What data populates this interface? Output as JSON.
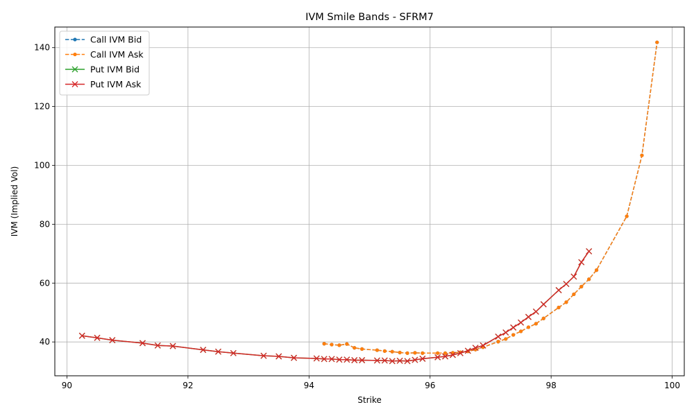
{
  "chart_data": {
    "type": "line",
    "title": "IVM Smile Bands - SFRM7",
    "xlabel": "Strike",
    "ylabel": "IVM (Implied Vol)",
    "xlim": [
      89.8,
      100.2
    ],
    "ylim": [
      28.5,
      147
    ],
    "xticks": [
      90,
      92,
      94,
      96,
      98,
      100
    ],
    "yticks": [
      40,
      60,
      80,
      100,
      120,
      140
    ],
    "grid": true,
    "legend_position": "top-left",
    "series": [
      {
        "name": "Call IVM Bid",
        "color": "#1f77b4",
        "linestyle": "dashed",
        "marker": "dot",
        "x": [
          94.25,
          94.375,
          94.5,
          94.625,
          94.75,
          94.875,
          95.125,
          95.25,
          95.375,
          95.5,
          95.625,
          95.75,
          95.875,
          96.125,
          96.25,
          96.375,
          96.5,
          96.625,
          96.75,
          96.875,
          97.125,
          97.25,
          97.375,
          97.5,
          97.625,
          97.75,
          97.875,
          98.125,
          98.25,
          98.375,
          98.5,
          98.625,
          98.75,
          99.25,
          99.5,
          99.75
        ],
        "y": [
          39.4,
          39.1,
          38.9,
          39.3,
          38.0,
          37.6,
          37.2,
          36.9,
          36.7,
          36.4,
          36.2,
          36.3,
          36.2,
          36.2,
          36.2,
          36.3,
          36.5,
          36.8,
          37.4,
          38.2,
          40.1,
          41.0,
          42.4,
          43.6,
          45.0,
          46.2,
          48.0,
          51.7,
          53.5,
          56.2,
          58.8,
          61.3,
          64.4,
          82.7,
          103.4,
          141.8
        ]
      },
      {
        "name": "Call IVM Ask",
        "color": "#ff7f0e",
        "linestyle": "dashed",
        "marker": "dot",
        "x": [
          94.25,
          94.375,
          94.5,
          94.625,
          94.75,
          94.875,
          95.125,
          95.25,
          95.375,
          95.5,
          95.625,
          95.75,
          95.875,
          96.125,
          96.25,
          96.375,
          96.5,
          96.625,
          96.75,
          96.875,
          97.125,
          97.25,
          97.375,
          97.5,
          97.625,
          97.75,
          97.875,
          98.125,
          98.25,
          98.375,
          98.5,
          98.625,
          98.75,
          99.25,
          99.5,
          99.75
        ],
        "y": [
          39.4,
          39.1,
          38.9,
          39.3,
          38.0,
          37.6,
          37.2,
          36.9,
          36.7,
          36.4,
          36.2,
          36.3,
          36.2,
          36.2,
          36.2,
          36.3,
          36.5,
          36.8,
          37.4,
          38.2,
          40.1,
          41.0,
          42.4,
          43.6,
          45.0,
          46.2,
          48.0,
          51.7,
          53.5,
          56.2,
          58.8,
          61.3,
          64.4,
          82.7,
          103.4,
          141.8
        ]
      },
      {
        "name": "Put IVM Bid",
        "color": "#2ca02c",
        "linestyle": "solid",
        "marker": "x",
        "x": [
          90.25,
          90.5,
          90.75,
          91.25,
          91.5,
          91.75,
          92.25,
          92.5,
          92.75,
          93.25,
          93.5,
          93.75,
          94.125,
          94.25,
          94.375,
          94.5,
          94.625,
          94.75,
          94.875,
          95.125,
          95.25,
          95.375,
          95.5,
          95.625,
          95.75,
          95.875,
          96.125,
          96.25,
          96.375,
          96.5,
          96.625,
          96.75,
          96.875,
          97.125,
          97.25,
          97.375,
          97.5,
          97.625,
          97.75,
          97.875,
          98.125,
          98.25,
          98.375,
          98.5,
          98.625
        ],
        "y": [
          42.1,
          41.4,
          40.6,
          39.6,
          38.8,
          38.6,
          37.3,
          36.7,
          36.2,
          35.3,
          35.1,
          34.6,
          34.4,
          34.2,
          34.2,
          34.0,
          34.0,
          33.8,
          33.8,
          33.7,
          33.7,
          33.5,
          33.6,
          33.5,
          33.9,
          34.3,
          34.8,
          35.1,
          35.6,
          36.2,
          37.0,
          38.0,
          38.8,
          41.8,
          43.2,
          44.9,
          46.6,
          48.5,
          50.3,
          52.8,
          57.6,
          59.7,
          62.2,
          67.1,
          70.8
        ]
      },
      {
        "name": "Put IVM Ask",
        "color": "#d62728",
        "linestyle": "solid",
        "marker": "x",
        "x": [
          90.25,
          90.5,
          90.75,
          91.25,
          91.5,
          91.75,
          92.25,
          92.5,
          92.75,
          93.25,
          93.5,
          93.75,
          94.125,
          94.25,
          94.375,
          94.5,
          94.625,
          94.75,
          94.875,
          95.125,
          95.25,
          95.375,
          95.5,
          95.625,
          95.75,
          95.875,
          96.125,
          96.25,
          96.375,
          96.5,
          96.625,
          96.75,
          96.875,
          97.125,
          97.25,
          97.375,
          97.5,
          97.625,
          97.75,
          97.875,
          98.125,
          98.25,
          98.375,
          98.5,
          98.625
        ],
        "y": [
          42.1,
          41.4,
          40.6,
          39.6,
          38.8,
          38.6,
          37.3,
          36.7,
          36.2,
          35.3,
          35.1,
          34.6,
          34.4,
          34.2,
          34.2,
          34.0,
          34.0,
          33.8,
          33.8,
          33.7,
          33.7,
          33.5,
          33.6,
          33.5,
          33.9,
          34.3,
          34.8,
          35.1,
          35.6,
          36.2,
          37.0,
          38.0,
          38.8,
          41.8,
          43.2,
          44.9,
          46.6,
          48.5,
          50.3,
          52.8,
          57.6,
          59.7,
          62.2,
          67.1,
          70.8
        ]
      }
    ]
  }
}
